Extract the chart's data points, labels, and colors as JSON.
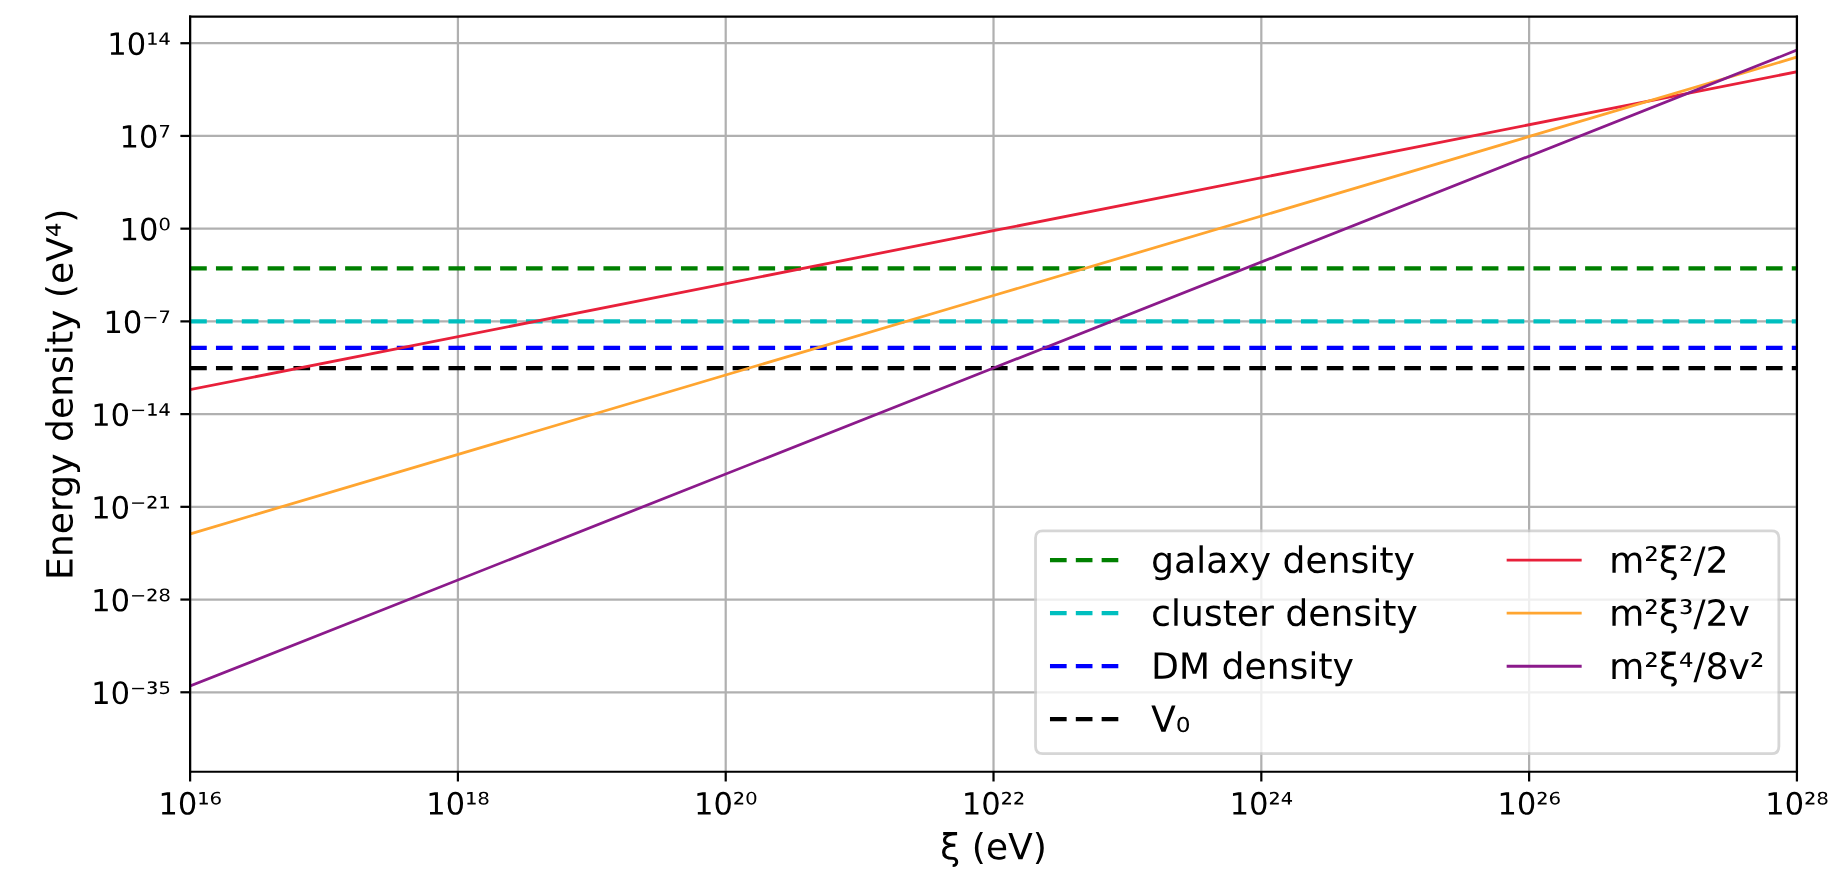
{
  "chart_data": {
    "type": "line",
    "xlabel": "ξ (eV)",
    "ylabel": "Energy density (eV⁴)",
    "log": "xy",
    "grid": true,
    "legend": "bottom right",
    "line_style": "solid",
    "marker": "none",
    "xlim": [
      1e+16,
      1e+28
    ],
    "ylim": [
      1e-41,
      1e+16
    ],
    "xticks": [
      {
        "value": 1e+16,
        "label": "10¹⁶"
      },
      {
        "value": 1e+18,
        "label": "10¹⁸"
      },
      {
        "value": 1e+20,
        "label": "10²⁰"
      },
      {
        "value": 1e+22,
        "label": "10²²"
      },
      {
        "value": 1e+24,
        "label": "10²⁴"
      },
      {
        "value": 1e+26,
        "label": "10²⁶"
      },
      {
        "value": 1e+28,
        "label": "10²⁸"
      }
    ],
    "yticks": [
      {
        "value": 1e-35,
        "label": "10⁻³⁵"
      },
      {
        "value": 1e-28,
        "label": "10⁻²⁸"
      },
      {
        "value": 1e-21,
        "label": "10⁻²¹"
      },
      {
        "value": 1e-14,
        "label": "10⁻¹⁴"
      },
      {
        "value": 1e-07,
        "label": "10⁻⁷"
      },
      {
        "value": 1,
        "label": "10⁰"
      },
      {
        "value": 10000000.0,
        "label": "10⁷"
      },
      {
        "value": 100000000000000.0,
        "label": "10¹⁴"
      }
    ],
    "ref_lines": [
      {
        "axis": "y",
        "value": 0.001,
        "label": "galaxy density",
        "color": "#008000",
        "line_style": "dashed"
      },
      {
        "axis": "y",
        "value": 1e-07,
        "label": "cluster density",
        "color": "#00bfbf",
        "line_style": "dashed"
      },
      {
        "axis": "y",
        "value": 1e-09,
        "label": "DM density",
        "color": "#0000ff",
        "line_style": "dashed"
      },
      {
        "axis": "y",
        "value": 3e-11,
        "label": "V₀",
        "color": "#000000",
        "line_style": "dashed"
      }
    ],
    "series": [
      {
        "name": "m²ξ²/2",
        "color": "#e8203a",
        "x": [
          1e+16,
          1e+22,
          1e+28
        ],
        "values": [
          7e-13,
          0.7,
          700000000000.0
        ]
      },
      {
        "name": "m²ξ³/2v",
        "color": "#ffa530",
        "x": [
          1e+16,
          1e+22,
          1e+28
        ],
        "values": [
          9e-24,
          9e-06,
          9000000000000.0
        ]
      },
      {
        "name": "m²ξ⁴/8v²",
        "color": "#8b1a8b",
        "x": [
          1e+16,
          1e+22,
          1e+28
        ],
        "values": [
          3e-35,
          3e-11,
          30000000000000.0
        ]
      }
    ]
  }
}
